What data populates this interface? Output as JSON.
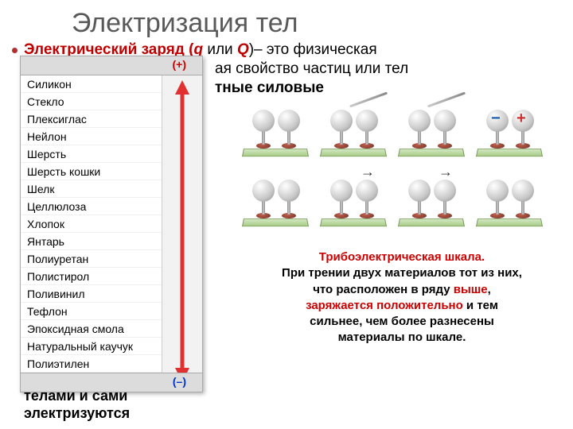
{
  "title": "Электризация тел",
  "definition": {
    "line1_prefix": "Электрический заряд (",
    "line1_q1": "q",
    "line1_or": " или ",
    "line1_q2": "Q",
    "line1_suffix": ")– это физическая",
    "line2": "ая свойство частиц или тел",
    "line3": "тные силовые"
  },
  "bottom": {
    "line1": "телами и сами",
    "line2": "электризуются"
  },
  "tribo": {
    "plus": "(+)",
    "minus": "(–)",
    "arrow_color": "#e03030",
    "materials": [
      "Силикон",
      "Стекло",
      "Плексиглас",
      "Нейлон",
      "Шерсть",
      "Шерсть кошки",
      "Шелк",
      "Целлюлоза",
      "Хлопок",
      "Янтарь",
      "Полиуретан",
      "Полистирол",
      "Поливинил",
      "Тефлон",
      "Эпоксидная смола",
      "Натуральный каучук",
      "Полиэтилен"
    ]
  },
  "caption": {
    "t1": "Трибоэлектрическая шкала.",
    "t2a": "При трении двух материалов тот из них,",
    "t2b": "что расположен в ряду ",
    "t2_red1": "выше",
    "t2c": ",",
    "t3_red": "заряжается положительно",
    "t3a": " и тем",
    "t4": "сильнее, чем более разнесены",
    "t5": "материалы по шкале."
  },
  "colors": {
    "title": "#595959",
    "red": "#cc0000",
    "plus": "#cc0000",
    "minus": "#0033cc"
  }
}
